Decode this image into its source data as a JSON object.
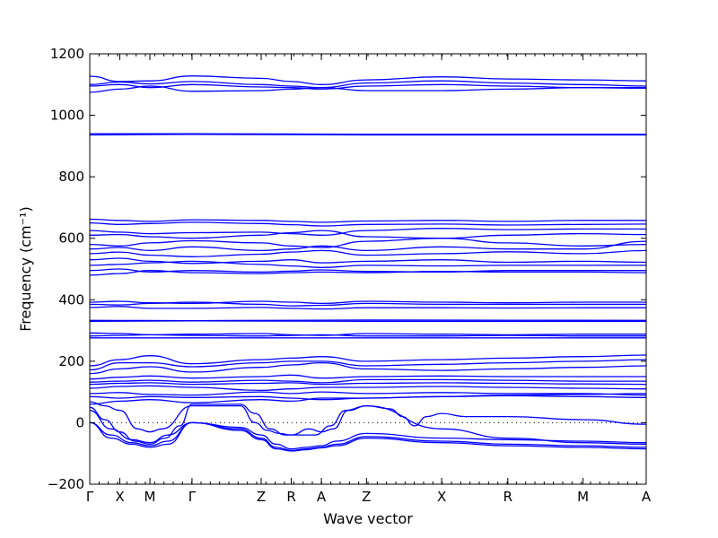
{
  "chart_data": {
    "type": "line",
    "title": "",
    "xlabel": "Wave vector",
    "ylabel": "Frequency (cm⁻¹)",
    "ylim": [
      -200,
      1200
    ],
    "yticks": [
      -200,
      0,
      200,
      400,
      600,
      800,
      1000,
      1200
    ],
    "xlim": [
      0,
      18.5
    ],
    "xticks": [
      {
        "pos": 0,
        "label": "Γ"
      },
      {
        "pos": 1,
        "label": "X"
      },
      {
        "pos": 2,
        "label": "M"
      },
      {
        "pos": 3.4,
        "label": "Γ"
      },
      {
        "pos": 5.7,
        "label": "Z"
      },
      {
        "pos": 6.7,
        "label": "R"
      },
      {
        "pos": 7.7,
        "label": "A"
      },
      {
        "pos": 9.2,
        "label": "Z"
      },
      {
        "pos": 11.7,
        "label": "X"
      },
      {
        "pos": 13.9,
        "label": "R"
      },
      {
        "pos": 16.4,
        "label": "M"
      },
      {
        "pos": 18.5,
        "label": "A"
      }
    ],
    "minor_tick_count": 60,
    "zero_line": true,
    "band_color": "#0000ff",
    "series": [
      {
        "x": [
          0,
          1,
          2,
          3.4,
          5.7,
          6.7,
          7.7,
          9.2,
          11.7,
          13.9,
          16.4,
          18.5
        ],
        "y": [
          1127,
          1110,
          1112,
          1128,
          1120,
          1110,
          1100,
          1115,
          1125,
          1118,
          1115,
          1112
        ]
      },
      {
        "x": [
          0,
          1,
          2,
          3.4,
          5.7,
          6.7,
          7.7,
          9.2,
          11.7,
          13.9,
          16.4,
          18.5
        ],
        "y": [
          1100,
          1108,
          1102,
          1110,
          1100,
          1095,
          1090,
          1105,
          1112,
          1105,
          1100,
          1095
        ]
      },
      {
        "x": [
          0,
          1,
          2,
          3.4,
          5.7,
          6.7,
          7.7,
          9.2,
          11.7,
          13.9,
          16.4,
          18.5
        ],
        "y": [
          1095,
          1100,
          1090,
          1100,
          1092,
          1090,
          1085,
          1095,
          1100,
          1095,
          1090,
          1090
        ]
      },
      {
        "x": [
          0,
          1,
          2,
          3.4,
          5.7,
          6.7,
          7.7,
          9.2,
          11.7,
          13.9,
          16.4,
          18.5
        ],
        "y": [
          1075,
          1085,
          1095,
          1078,
          1080,
          1085,
          1090,
          1080,
          1080,
          1085,
          1090,
          1088
        ]
      },
      {
        "x": [
          0,
          3.4,
          9.2,
          18.5
        ],
        "y": [
          940,
          940,
          938,
          938
        ]
      },
      {
        "x": [
          0,
          3.4,
          9.2,
          18.5
        ],
        "y": [
          936,
          938,
          936,
          936
        ]
      },
      {
        "x": [
          0,
          1,
          2,
          3.4,
          5.7,
          6.7,
          7.7,
          9.2,
          11.7,
          13.9,
          16.4,
          18.5
        ],
        "y": [
          662,
          658,
          655,
          660,
          658,
          655,
          652,
          656,
          658,
          655,
          658,
          658
        ]
      },
      {
        "x": [
          0,
          1,
          2,
          3.4,
          5.7,
          6.7,
          7.7,
          9.2,
          11.7,
          13.9,
          16.4,
          18.5
        ],
        "y": [
          650,
          645,
          648,
          652,
          648,
          644,
          640,
          645,
          646,
          643,
          645,
          646
        ]
      },
      {
        "x": [
          0,
          1,
          2,
          3.4,
          5.7,
          6.7,
          7.7,
          9.2,
          11.7,
          13.9,
          16.4,
          18.5
        ],
        "y": [
          625,
          620,
          615,
          618,
          620,
          615,
          610,
          625,
          632,
          628,
          630,
          630
        ]
      },
      {
        "x": [
          0,
          1,
          2,
          3.4,
          5.7,
          6.7,
          7.7,
          9.2,
          11.7,
          13.9,
          16.4,
          18.5
        ],
        "y": [
          610,
          612,
          605,
          600,
          610,
          618,
          625,
          605,
          600,
          610,
          615,
          612
        ]
      },
      {
        "x": [
          0,
          1,
          2,
          3.4,
          5.7,
          6.7,
          7.7,
          9.2,
          11.7,
          13.9,
          16.4,
          18.5
        ],
        "y": [
          580,
          575,
          585,
          592,
          585,
          575,
          570,
          590,
          600,
          585,
          575,
          580
        ]
      },
      {
        "x": [
          0,
          1,
          2,
          3.4,
          5.7,
          6.7,
          7.7,
          9.2,
          11.7,
          13.9,
          16.4,
          18.5
        ],
        "y": [
          565,
          570,
          560,
          572,
          560,
          565,
          575,
          560,
          572,
          565,
          565,
          590
        ]
      },
      {
        "x": [
          0,
          1,
          2,
          3.4,
          5.7,
          6.7,
          7.7,
          9.2,
          11.7,
          13.9,
          16.4,
          18.5
        ],
        "y": [
          550,
          555,
          545,
          540,
          548,
          555,
          560,
          545,
          550,
          556,
          550,
          560
        ]
      },
      {
        "x": [
          0,
          1,
          2,
          3.4,
          5.7,
          6.7,
          7.7,
          9.2,
          11.7,
          13.9,
          16.4,
          18.5
        ],
        "y": [
          530,
          535,
          525,
          518,
          525,
          530,
          520,
          525,
          530,
          522,
          525,
          522
        ]
      },
      {
        "x": [
          0,
          1,
          2,
          3.4,
          5.7,
          6.7,
          7.7,
          9.2,
          11.7,
          13.9,
          16.4,
          18.5
        ],
        "y": [
          512,
          515,
          520,
          525,
          515,
          510,
          505,
          512,
          510,
          512,
          512,
          512
        ]
      },
      {
        "x": [
          0,
          1,
          2,
          3.4,
          5.7,
          6.7,
          7.7,
          9.2,
          11.7,
          13.9,
          16.4,
          18.5
        ],
        "y": [
          495,
          500,
          490,
          495,
          490,
          493,
          497,
          492,
          490,
          495,
          495,
          495
        ]
      },
      {
        "x": [
          0,
          1,
          2,
          3.4,
          5.7,
          6.7,
          7.7,
          9.2,
          11.7,
          13.9,
          16.4,
          18.5
        ],
        "y": [
          480,
          485,
          495,
          488,
          485,
          488,
          490,
          488,
          492,
          490,
          490,
          488
        ]
      },
      {
        "x": [
          0,
          1,
          2,
          3.4,
          5.7,
          6.7,
          7.7,
          9.2,
          11.7,
          13.9,
          16.4,
          18.5
        ],
        "y": [
          392,
          395,
          390,
          388,
          395,
          392,
          388,
          395,
          392,
          390,
          392,
          392
        ]
      },
      {
        "x": [
          0,
          1,
          2,
          3.4,
          5.7,
          6.7,
          7.7,
          9.2,
          11.7,
          13.9,
          16.4,
          18.5
        ],
        "y": [
          385,
          383,
          388,
          392,
          385,
          380,
          382,
          388,
          385,
          385,
          385,
          385
        ]
      },
      {
        "x": [
          0,
          1,
          2,
          3.4,
          5.7,
          6.7,
          7.7,
          9.2,
          11.7,
          13.9,
          16.4,
          18.5
        ],
        "y": [
          375,
          378,
          372,
          372,
          375,
          372,
          370,
          374,
          374,
          373,
          374,
          374
        ]
      },
      {
        "x": [
          0,
          3.4,
          9.2,
          18.5
        ],
        "y": [
          333,
          332,
          334,
          333
        ]
      },
      {
        "x": [
          0,
          3.4,
          9.2,
          18.5
        ],
        "y": [
          330,
          331,
          330,
          330
        ]
      },
      {
        "x": [
          0,
          1,
          2,
          3.4,
          5.7,
          6.7,
          7.7,
          9.2,
          11.7,
          13.9,
          16.4,
          18.5
        ],
        "y": [
          292,
          290,
          286,
          288,
          290,
          286,
          284,
          290,
          288,
          286,
          288,
          288
        ]
      },
      {
        "x": [
          0,
          1,
          2,
          3.4,
          5.7,
          6.7,
          7.7,
          9.2,
          11.7,
          13.9,
          16.4,
          18.5
        ],
        "y": [
          282,
          284,
          286,
          284,
          282,
          284,
          286,
          282,
          282,
          284,
          282,
          282
        ]
      },
      {
        "x": [
          0,
          1,
          2,
          3.4,
          5.7,
          6.7,
          7.7,
          9.2,
          11.7,
          13.9,
          16.4,
          18.5
        ],
        "y": [
          276,
          276,
          276,
          276,
          276,
          276,
          276,
          276,
          276,
          276,
          276,
          276
        ]
      },
      {
        "x": [
          0,
          1,
          2,
          3.4,
          5.7,
          6.7,
          7.7,
          9.2,
          11.7,
          13.9,
          16.4,
          18.5
        ],
        "y": [
          185,
          205,
          218,
          192,
          205,
          210,
          215,
          200,
          205,
          210,
          215,
          220
        ]
      },
      {
        "x": [
          0,
          1,
          2,
          3.4,
          5.7,
          6.7,
          7.7,
          9.2,
          11.7,
          13.9,
          16.4,
          18.5
        ],
        "y": [
          172,
          195,
          195,
          182,
          195,
          200,
          200,
          185,
          190,
          195,
          200,
          205
        ]
      },
      {
        "x": [
          0,
          1,
          2,
          3.4,
          5.7,
          6.7,
          7.7,
          9.2,
          11.7,
          13.9,
          16.4,
          18.5
        ],
        "y": [
          160,
          175,
          182,
          165,
          180,
          188,
          195,
          175,
          170,
          175,
          180,
          185
        ]
      },
      {
        "x": [
          0,
          1,
          2,
          3.4,
          5.7,
          6.7,
          7.7,
          9.2,
          11.7,
          13.9,
          16.4,
          18.5
        ],
        "y": [
          142,
          148,
          152,
          145,
          150,
          155,
          145,
          150,
          152,
          150,
          150,
          150
        ]
      },
      {
        "x": [
          0,
          1,
          2,
          3.4,
          5.7,
          6.7,
          7.7,
          9.2,
          11.7,
          13.9,
          16.4,
          18.5
        ],
        "y": [
          132,
          135,
          138,
          132,
          138,
          135,
          130,
          140,
          140,
          138,
          135,
          135
        ]
      },
      {
        "x": [
          0,
          1,
          2,
          3.4,
          5.7,
          6.7,
          7.7,
          9.2,
          11.7,
          13.9,
          16.4,
          18.5
        ],
        "y": [
          125,
          128,
          130,
          125,
          128,
          130,
          125,
          128,
          130,
          128,
          126,
          125
        ]
      },
      {
        "x": [
          0,
          1,
          2,
          3.4,
          5.7,
          6.7,
          7.7,
          9.2,
          11.7,
          13.9,
          16.4,
          18.5
        ],
        "y": [
          112,
          118,
          120,
          115,
          105,
          110,
          115,
          115,
          118,
          115,
          112,
          110
        ]
      },
      {
        "x": [
          0,
          1,
          2,
          3.4,
          5.7,
          6.7,
          7.7,
          9.2,
          11.7,
          13.9,
          16.4,
          18.5
        ],
        "y": [
          95,
          98,
          92,
          90,
          100,
          95,
          100,
          95,
          98,
          95,
          95,
          90
        ]
      },
      {
        "x": [
          0,
          1,
          2,
          3.4,
          5.7,
          6.7,
          7.7,
          9.2,
          11.7,
          13.9,
          16.4,
          18.5
        ],
        "y": [
          85,
          80,
          85,
          82,
          85,
          80,
          75,
          80,
          85,
          88,
          85,
          82
        ]
      },
      {
        "x": [
          0,
          0.5,
          1,
          1.6,
          2,
          2.4,
          3.4,
          5.0,
          5.5,
          5.9,
          6.3,
          6.7,
          7.3,
          7.7,
          8.1,
          8.6,
          9.2,
          10.0,
          10.4,
          10.8,
          11.2,
          11.7,
          12.5,
          13.9,
          16.4,
          18.5
        ],
        "y": [
          68,
          55,
          40,
          -20,
          -30,
          -20,
          55,
          55,
          0,
          -25,
          -35,
          -40,
          -20,
          -30,
          -20,
          40,
          55,
          45,
          20,
          -10,
          20,
          30,
          20,
          20,
          10,
          -5
        ]
      },
      {
        "x": [
          0,
          0.5,
          1,
          1.5,
          2,
          2.5,
          3.0,
          3.4,
          5.0,
          5.5,
          6.0,
          6.5,
          7.0,
          7.5,
          8.0,
          8.5,
          9.2,
          11.7,
          13.9,
          16.4,
          18.5
        ],
        "y": [
          50,
          10,
          -30,
          -60,
          -70,
          -50,
          -10,
          60,
          60,
          30,
          -20,
          -40,
          -40,
          -40,
          -10,
          40,
          55,
          -20,
          -50,
          -65,
          -70
        ]
      },
      {
        "x": [
          0,
          0.7,
          1.4,
          2,
          2.6,
          3.4,
          5.0,
          5.7,
          6.2,
          6.7,
          7.2,
          7.7,
          8.2,
          9.2,
          11.7,
          13.9,
          16.4,
          18.5
        ],
        "y": [
          40,
          -20,
          -55,
          -65,
          -40,
          0,
          -15,
          -40,
          -70,
          -85,
          -80,
          -75,
          -60,
          -35,
          -50,
          -55,
          -60,
          -65
        ]
      },
      {
        "x": [
          0,
          0.7,
          1.4,
          2,
          2.6,
          3.4,
          5.0,
          5.7,
          6.2,
          6.7,
          7.2,
          7.7,
          8.2,
          9.2,
          11.7,
          13.9,
          16.4,
          18.5
        ],
        "y": [
          0,
          -40,
          -65,
          -75,
          -60,
          0,
          -20,
          -50,
          -80,
          -90,
          -85,
          -80,
          -70,
          -45,
          -60,
          -70,
          -75,
          -80
        ]
      },
      {
        "x": [
          0,
          0.7,
          1.4,
          2,
          2.6,
          3.4,
          5.0,
          5.7,
          6.2,
          6.7,
          7.2,
          7.7,
          8.2,
          9.2,
          11.7,
          13.9,
          16.4,
          18.5
        ],
        "y": [
          0,
          -50,
          -70,
          -80,
          -70,
          0,
          -25,
          -55,
          -85,
          -92,
          -88,
          -82,
          -75,
          -50,
          -65,
          -75,
          -80,
          -85
        ]
      },
      {
        "x": [
          0,
          1,
          2,
          3.4,
          5.7,
          6.7,
          7.7,
          9.2,
          11.7,
          13.9,
          16.4,
          18.5
        ],
        "y": [
          60,
          70,
          75,
          65,
          75,
          70,
          80,
          80,
          85,
          90,
          92,
          95
        ]
      }
    ]
  }
}
